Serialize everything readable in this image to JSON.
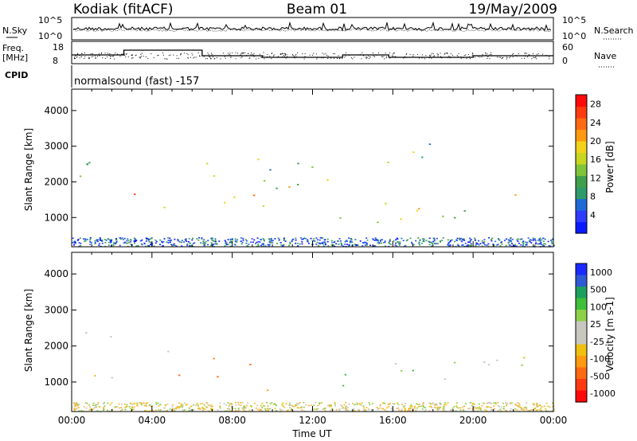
{
  "header": {
    "station": "Kodiak (fitACF)",
    "beam": "Beam 01",
    "date": "19/May/2009"
  },
  "noise_panel": {
    "left_label": "N.Sky",
    "right_label": "N.Search",
    "ticks": [
      "10^5",
      "10^0"
    ],
    "right_ticks": [
      "10^5",
      "10^0"
    ]
  },
  "freq_panel": {
    "left_label_line1": "Freq.",
    "left_label_line2": "[MHz]",
    "right_label": "Nave",
    "left_ticks": [
      "18",
      "8"
    ],
    "right_ticks": [
      "60",
      "0"
    ]
  },
  "cpid": {
    "label": "CPID",
    "value": "normalsound (fast) -157"
  },
  "chart_data": [
    {
      "type": "heatmap",
      "title": "",
      "xlabel": "Time UT",
      "ylabel": "Slant Range [km]",
      "xlim": [
        0,
        24
      ],
      "ylim": [
        180,
        4600
      ],
      "x_ticks": [
        "00:00",
        "04:00",
        "08:00",
        "12:00",
        "16:00",
        "20:00",
        "00:00"
      ],
      "y_ticks": [
        "1000",
        "2000",
        "3000",
        "4000"
      ],
      "colorbar": {
        "label": "Power [dB]",
        "ticks": [
          "4",
          "8",
          "12",
          "16",
          "20",
          "24",
          "28"
        ],
        "range": [
          0,
          30
        ],
        "colors": [
          "#0a1aff",
          "#2f3cff",
          "#1f6ad6",
          "#2f9a6a",
          "#3f9f4a",
          "#7fc43a",
          "#c9d61f",
          "#f2d21a",
          "#ff9a10",
          "#ff6a10",
          "#ff3a10",
          "#ff0a0a"
        ]
      },
      "scatter_bands": [
        {
          "t0": 0.0,
          "t1": 2.6,
          "r0": 1100,
          "r1": 2600,
          "level": 0.35
        },
        {
          "t0": 3.0,
          "t1": 5.8,
          "r0": 1200,
          "r1": 1900,
          "level": 0.75
        },
        {
          "t0": 6.5,
          "t1": 10.0,
          "r0": 750,
          "r1": 1700,
          "level": 0.8
        },
        {
          "t0": 6.5,
          "t1": 11.5,
          "r0": 1800,
          "r1": 3300,
          "level": 0.45
        },
        {
          "t0": 9.5,
          "t1": 14.5,
          "r0": 1900,
          "r1": 2500,
          "level": 0.55
        },
        {
          "t0": 13.0,
          "t1": 17.0,
          "r0": 700,
          "r1": 1300,
          "level": 0.6
        },
        {
          "t0": 15.5,
          "t1": 24.0,
          "r0": 1000,
          "r1": 1700,
          "level": 0.5
        },
        {
          "t0": 15.5,
          "t1": 18.0,
          "r0": 1700,
          "r1": 3300,
          "level": 0.4
        }
      ]
    },
    {
      "type": "heatmap",
      "title": "",
      "xlabel": "Time UT",
      "ylabel": "Slant Range [km]",
      "xlim": [
        0,
        24
      ],
      "ylim": [
        180,
        4600
      ],
      "x_ticks": [
        "00:00",
        "04:00",
        "08:00",
        "12:00",
        "16:00",
        "20:00",
        "00:00"
      ],
      "y_ticks": [
        "1000",
        "2000",
        "3000",
        "4000"
      ],
      "colorbar": {
        "label": "Velocity [m s-1]",
        "ticks": [
          "1000",
          "500",
          "100",
          "25",
          "-25",
          "-100",
          "-500",
          "-1000"
        ],
        "range": [
          -1000,
          1000
        ],
        "colors": [
          "#1a2aff",
          "#2f5ad6",
          "#1e9f5e",
          "#3fbf3a",
          "#8fd04a",
          "#c8c8c0",
          "#c8c8c0",
          "#f0c010",
          "#ff9a10",
          "#ff6a10",
          "#ff3a10",
          "#ff0a0a"
        ]
      },
      "scatter_bands": [
        {
          "t0": 0.0,
          "t1": 2.6,
          "r0": 1100,
          "r1": 2600,
          "kind": "grey"
        },
        {
          "t0": 3.0,
          "t1": 5.8,
          "r0": 1200,
          "r1": 1900,
          "kind": "orange"
        },
        {
          "t0": 6.5,
          "t1": 10.0,
          "r0": 750,
          "r1": 1700,
          "kind": "orange"
        },
        {
          "t0": 13.0,
          "t1": 17.0,
          "r0": 700,
          "r1": 1600,
          "kind": "green"
        },
        {
          "t0": 15.5,
          "t1": 24.0,
          "r0": 1000,
          "r1": 1800,
          "kind": "grey"
        }
      ]
    }
  ]
}
